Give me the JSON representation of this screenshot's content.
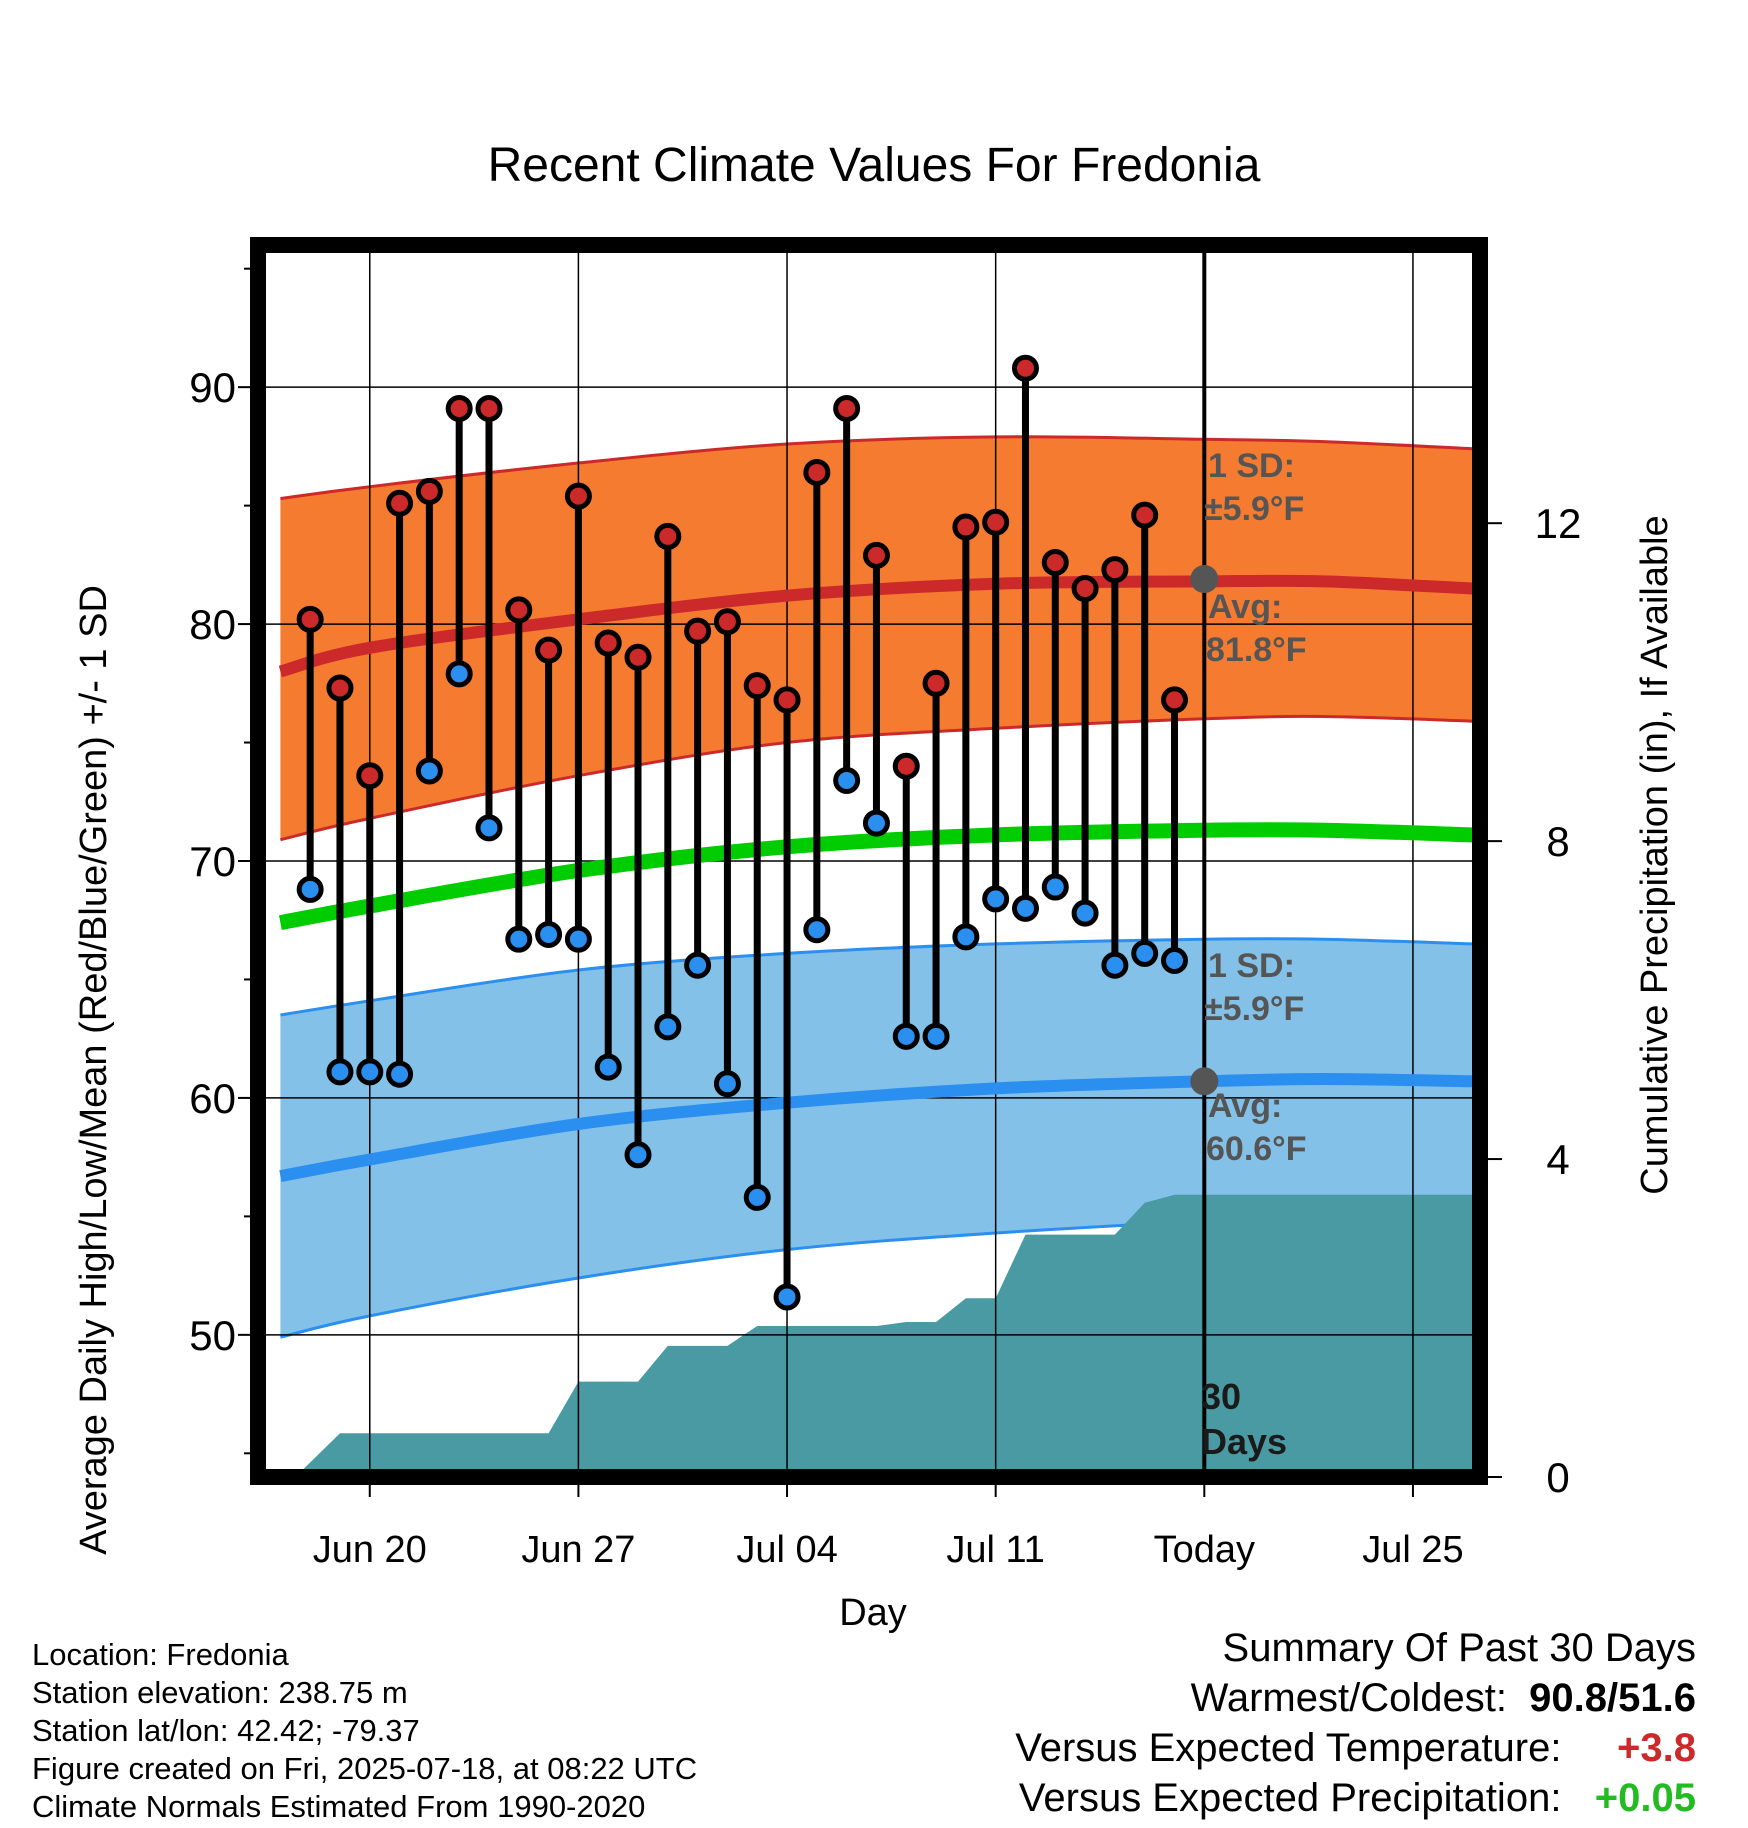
{
  "chart_data": {
    "type": "line",
    "title": "Recent Climate Values For Fredonia",
    "xlabel": "Day",
    "ylabel": "Average Daily High/Low/Mean (Red/Blue/Green) +/- 1 SD",
    "y2label": "Cumulative Precipitation (in), If Available",
    "xlim": [
      -3.75,
      37.25
    ],
    "ylim": [
      44,
      96
    ],
    "y2lim": [
      0,
      15.5
    ],
    "grid": true,
    "x_ticks": [
      {
        "x": 0,
        "label": "Jun 20"
      },
      {
        "x": 7,
        "label": "Jun 27"
      },
      {
        "x": 14,
        "label": "Jul 04"
      },
      {
        "x": 21,
        "label": "Jul 11"
      },
      {
        "x": 28,
        "label": "Today"
      },
      {
        "x": 35,
        "label": "Jul 25"
      }
    ],
    "y_ticks": [
      50,
      60,
      70,
      80,
      90
    ],
    "y2_ticks": [
      0,
      4,
      8,
      12
    ],
    "colors": {
      "high_band": "#f47b2f",
      "high_line": "#cc2a2a",
      "low_band": "#84c1e8",
      "low_line": "#2b8ff0",
      "mean_line": "#00cc00",
      "precip": "#4a9aa4",
      "high_marker": "#cc2a2a",
      "low_marker": "#2b8ff0",
      "avg_marker": "#555555"
    },
    "days": {
      "x": [
        -2,
        -1,
        0,
        1,
        2,
        3,
        4,
        5,
        6,
        7,
        8,
        9,
        10,
        11,
        12,
        13,
        14,
        15,
        16,
        17,
        18,
        19,
        20,
        21,
        22,
        23,
        24,
        25,
        26,
        27
      ],
      "high": [
        80.2,
        77.3,
        73.6,
        85.1,
        85.6,
        89.1,
        89.1,
        80.6,
        78.9,
        85.4,
        79.2,
        78.6,
        83.7,
        79.7,
        80.1,
        77.4,
        76.8,
        86.4,
        89.1,
        82.9,
        74.0,
        77.5,
        84.1,
        84.3,
        90.8,
        82.6,
        81.5,
        82.3,
        84.6,
        76.8
      ],
      "low": [
        68.8,
        61.1,
        61.1,
        61.0,
        73.8,
        77.9,
        71.4,
        66.7,
        66.9,
        66.7,
        61.3,
        57.6,
        63.0,
        65.6,
        60.6,
        55.8,
        51.6,
        67.1,
        73.4,
        71.6,
        62.6,
        62.6,
        66.8,
        68.4,
        68.0,
        68.9,
        67.8,
        65.6,
        66.1,
        65.8
      ]
    },
    "normal_high": {
      "x": [
        -3,
        0,
        7,
        14,
        21,
        28,
        32,
        37
      ],
      "mean": [
        78.0,
        79.0,
        80.2,
        81.2,
        81.7,
        81.8,
        81.8,
        81.5
      ],
      "upper": [
        85.3,
        85.8,
        86.8,
        87.6,
        87.9,
        87.8,
        87.7,
        87.4
      ],
      "lower": [
        70.9,
        71.8,
        73.6,
        75.0,
        75.6,
        76.0,
        76.1,
        75.9
      ]
    },
    "normal_low": {
      "x": [
        -3,
        0,
        7,
        14,
        21,
        28,
        32,
        37
      ],
      "mean": [
        56.7,
        57.4,
        58.9,
        59.8,
        60.4,
        60.7,
        60.8,
        60.7
      ],
      "upper": [
        63.5,
        64.1,
        65.4,
        66.1,
        66.5,
        66.7,
        66.7,
        66.5
      ],
      "lower": [
        49.9,
        50.8,
        52.4,
        53.6,
        54.3,
        54.8,
        55.0,
        55.0
      ]
    },
    "normal_mean": {
      "x": [
        -3,
        0,
        7,
        14,
        21,
        28,
        32,
        37
      ],
      "values": [
        67.4,
        68.1,
        69.6,
        70.6,
        71.1,
        71.3,
        71.3,
        71.1
      ]
    },
    "precip_cumulative": {
      "x": [
        -2.5,
        -1,
        0,
        1,
        2,
        3,
        4,
        5,
        6,
        7,
        8,
        9,
        10,
        11,
        12,
        13,
        14,
        15,
        16,
        17,
        18,
        19,
        20,
        21,
        22,
        23,
        24,
        25,
        26,
        27,
        28,
        37
      ],
      "values": [
        0.0,
        0.55,
        0.55,
        0.55,
        0.55,
        0.55,
        0.55,
        0.55,
        0.55,
        1.2,
        1.2,
        1.2,
        1.65,
        1.65,
        1.65,
        1.9,
        1.9,
        1.9,
        1.9,
        1.9,
        1.95,
        1.95,
        2.25,
        2.25,
        3.05,
        3.05,
        3.05,
        3.05,
        3.45,
        3.55,
        3.55,
        3.55
      ]
    },
    "annotations": {
      "high_sd": "1 SD:",
      "high_sd_value": "±5.9°F",
      "high_avg": "Avg:",
      "high_avg_value": "81.8°F",
      "high_avg_marker": {
        "x": 28,
        "y": 81.9
      },
      "low_sd": "1 SD:",
      "low_sd_value": "±5.9°F",
      "low_avg": "Avg:",
      "low_avg_value": "60.6°F",
      "low_avg_marker": {
        "x": 28,
        "y": 60.7
      },
      "window_label_1": "30",
      "window_label_2": "Days",
      "today_x": 28
    }
  },
  "footer": {
    "location": "Location: Fredonia",
    "elevation": "Station elevation: 238.75 m",
    "latlon": "Station lat/lon: 42.42; -79.37",
    "created": "Figure created on Fri, 2025-07-18, at 08:22 UTC",
    "normals": "Climate Normals Estimated From 1990-2020",
    "summary_title": "Summary Of Past 30 Days",
    "warm_cold_label": "Warmest/Coldest:",
    "warm_cold_value": "90.8/51.6",
    "temp_label": "Versus Expected Temperature:",
    "temp_value": "+3.8",
    "precip_label": "Versus Expected Precipitation:",
    "precip_value": "+0.05"
  }
}
